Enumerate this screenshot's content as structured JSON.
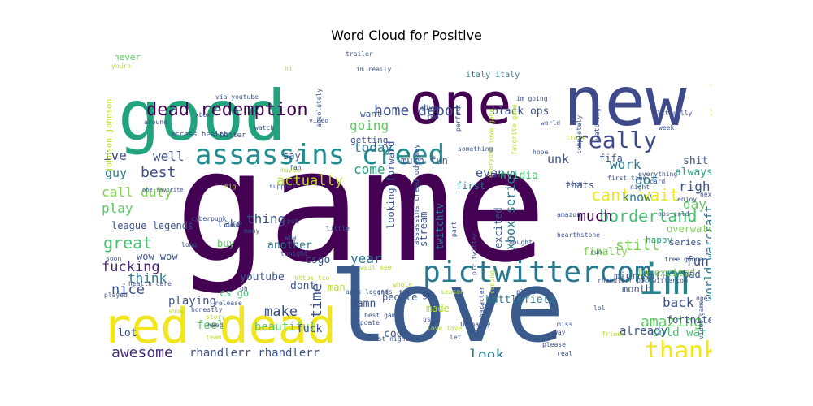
{
  "chart_data": {
    "type": "wordcloud",
    "title": "Word Cloud for Positive",
    "words": [
      {
        "text": "game",
        "weight": 1.0,
        "color": "#440154"
      },
      {
        "text": "love",
        "weight": 0.62,
        "color": "#3b5b8d"
      },
      {
        "text": "good",
        "weight": 0.48,
        "color": "#22a37e"
      },
      {
        "text": "new",
        "weight": 0.45,
        "color": "#3e4a89"
      },
      {
        "text": "one",
        "weight": 0.4,
        "color": "#440154"
      },
      {
        "text": "red dead",
        "weight": 0.33,
        "color": "#f1e51d"
      },
      {
        "text": "im",
        "weight": 0.32,
        "color": "#25848e"
      },
      {
        "text": "pictwittercom",
        "weight": 0.22,
        "color": "#2a788e"
      },
      {
        "text": "assassins creed",
        "weight": 0.21,
        "color": "#228b8d"
      },
      {
        "text": "really",
        "weight": 0.16,
        "color": "#3e4a89"
      },
      {
        "text": "thank",
        "weight": 0.15,
        "color": "#f1e51d"
      },
      {
        "text": "dead redemption",
        "weight": 0.12,
        "color": "#440154"
      },
      {
        "text": "cant wait",
        "weight": 0.1,
        "color": "#f1e51d"
      },
      {
        "text": "borderland",
        "weight": 0.1,
        "color": "#44bf70"
      },
      {
        "text": "great",
        "weight": 0.11,
        "color": "#44bf70"
      },
      {
        "text": "awesome",
        "weight": 0.09,
        "color": "#472c7a"
      },
      {
        "text": "amazing",
        "weight": 0.09,
        "color": "#5ec962"
      },
      {
        "text": "home depot",
        "weight": 0.09,
        "color": "#3b528b"
      },
      {
        "text": "much",
        "weight": 0.09,
        "color": "#440154"
      },
      {
        "text": "best",
        "weight": 0.09,
        "color": "#3e4a89"
      },
      {
        "text": "look",
        "weight": 0.09,
        "color": "#2a788e"
      },
      {
        "text": "fucking",
        "weight": 0.08,
        "color": "#482475"
      },
      {
        "text": "play",
        "weight": 0.08,
        "color": "#5ec962"
      },
      {
        "text": "call duty",
        "weight": 0.08,
        "color": "#7ad151"
      },
      {
        "text": "actually",
        "weight": 0.08,
        "color": "#b5de2b"
      },
      {
        "text": "going",
        "weight": 0.07,
        "color": "#5ec962"
      },
      {
        "text": "today",
        "weight": 0.07,
        "color": "#2a788e"
      },
      {
        "text": "come",
        "weight": 0.07,
        "color": "#22a37e"
      },
      {
        "text": "still",
        "weight": 0.08,
        "color": "#7ad151"
      },
      {
        "text": "back",
        "weight": 0.07,
        "color": "#3b528b"
      },
      {
        "text": "make",
        "weight": 0.07,
        "color": "#3b528b"
      },
      {
        "text": "ive",
        "weight": 0.07,
        "color": "#3e4a89"
      },
      {
        "text": "well",
        "weight": 0.07,
        "color": "#3b528b"
      },
      {
        "text": "nice",
        "weight": 0.07,
        "color": "#3b528b"
      },
      {
        "text": "think",
        "weight": 0.07,
        "color": "#2a788e"
      },
      {
        "text": "got",
        "weight": 0.07,
        "color": "#2a788e"
      },
      {
        "text": "work",
        "weight": 0.07,
        "color": "#2a788e"
      },
      {
        "text": "right",
        "weight": 0.07,
        "color": "#3b528b"
      },
      {
        "text": "day",
        "weight": 0.07,
        "color": "#5ec962"
      },
      {
        "text": "fun",
        "weight": 0.07,
        "color": "#3b528b"
      },
      {
        "text": "year",
        "weight": 0.07,
        "color": "#2a788e"
      },
      {
        "text": "time",
        "weight": 0.07,
        "color": "#3b528b"
      },
      {
        "text": "thing",
        "weight": 0.06,
        "color": "#3b528b"
      },
      {
        "text": "guy",
        "weight": 0.06,
        "color": "#2a788e"
      },
      {
        "text": "know",
        "weight": 0.06,
        "color": "#2a788e"
      },
      {
        "text": "unk",
        "weight": 0.06,
        "color": "#3b528b"
      },
      {
        "text": "xbox series",
        "weight": 0.06,
        "color": "#2a788e"
      },
      {
        "text": "even",
        "weight": 0.06,
        "color": "#3b528b"
      },
      {
        "text": "cold war",
        "weight": 0.05,
        "color": "#44bf70"
      },
      {
        "text": "already",
        "weight": 0.05,
        "color": "#3b528b"
      },
      {
        "text": "world warcraft",
        "weight": 0.05,
        "color": "#2a788e"
      },
      {
        "text": "rhandlerr rhandlerr",
        "weight": 0.05,
        "color": "#3b528b"
      },
      {
        "text": "black ops",
        "weight": 0.05,
        "color": "#3b528b"
      },
      {
        "text": "fifa",
        "weight": 0.05,
        "color": "#3b528b"
      },
      {
        "text": "always",
        "weight": 0.05,
        "color": "#22a37e"
      },
      {
        "text": "shit",
        "weight": 0.05,
        "color": "#3b528b"
      },
      {
        "text": "nvidia",
        "weight": 0.05,
        "color": "#44bf70"
      },
      {
        "text": "first",
        "weight": 0.05,
        "color": "#2a788e"
      },
      {
        "text": "thats",
        "weight": 0.05,
        "color": "#3b528b"
      },
      {
        "text": "overwatch",
        "weight": 0.05,
        "color": "#7ad151"
      },
      {
        "text": "happy",
        "weight": 0.04,
        "color": "#22a37e"
      },
      {
        "text": "finally",
        "weight": 0.05,
        "color": "#7ad151"
      },
      {
        "text": "series",
        "weight": 0.04,
        "color": "#3b528b"
      },
      {
        "text": "im excited",
        "weight": 0.04,
        "color": "#7ad151"
      },
      {
        "text": "microsoft",
        "weight": 0.04,
        "color": "#3b528b"
      },
      {
        "text": "battlefield",
        "weight": 0.05,
        "color": "#2a788e"
      },
      {
        "text": "month",
        "weight": 0.04,
        "color": "#3b528b"
      },
      {
        "text": "fortnite",
        "weight": 0.04,
        "color": "#3b528b"
      },
      {
        "text": "bad",
        "weight": 0.04,
        "color": "#3b528b"
      },
      {
        "text": "people",
        "weight": 0.05,
        "color": "#3b528b"
      },
      {
        "text": "made",
        "weight": 0.04,
        "color": "#b5de2b"
      },
      {
        "text": "go",
        "weight": 0.04,
        "color": "#3b528b"
      },
      {
        "text": "cool",
        "weight": 0.05,
        "color": "#3b528b"
      },
      {
        "text": "damn",
        "weight": 0.05,
        "color": "#3b528b"
      },
      {
        "text": "beautiful",
        "weight": 0.05,
        "color": "#5ec962"
      },
      {
        "text": "feel",
        "weight": 0.05,
        "color": "#5ec962"
      },
      {
        "text": "fuck",
        "weight": 0.04,
        "color": "#3b528b"
      },
      {
        "text": "playing",
        "weight": 0.05,
        "color": "#3b528b"
      },
      {
        "text": "lot",
        "weight": 0.05,
        "color": "#3b528b"
      },
      {
        "text": "youtube",
        "weight": 0.04,
        "color": "#3b528b"
      },
      {
        "text": "cs go",
        "weight": 0.04,
        "color": "#44bf70"
      },
      {
        "text": "csgo",
        "weight": 0.04,
        "color": "#3b528b"
      },
      {
        "text": "dont",
        "weight": 0.04,
        "color": "#3b528b"
      },
      {
        "text": "league legends",
        "weight": 0.04,
        "color": "#3b528b"
      },
      {
        "text": "wow wow",
        "weight": 0.04,
        "color": "#3b528b"
      },
      {
        "text": "take",
        "weight": 0.04,
        "color": "#3b528b"
      },
      {
        "text": "buy",
        "weight": 0.04,
        "color": "#5ec962"
      },
      {
        "text": "another",
        "weight": 0.04,
        "color": "#2a788e"
      },
      {
        "text": "man",
        "weight": 0.04,
        "color": "#b5de2b"
      },
      {
        "text": "excited",
        "weight": 0.04,
        "color": "#3b528b"
      },
      {
        "text": "looking forward",
        "weight": 0.04,
        "color": "#3b528b"
      },
      {
        "text": "stream",
        "weight": 0.04,
        "color": "#3b528b"
      },
      {
        "text": "twitchtv",
        "weight": 0.04,
        "color": "#2a788e"
      },
      {
        "text": "say",
        "weight": 0.04,
        "color": "#3b528b"
      },
      {
        "text": "much fun",
        "weight": 0.04,
        "color": "#3b528b"
      },
      {
        "text": "want",
        "weight": 0.04,
        "color": "#3b528b"
      },
      {
        "text": "getting",
        "weight": 0.04,
        "color": "#3b528b"
      },
      {
        "text": "never",
        "weight": 0.03,
        "color": "#5ec962"
      },
      {
        "text": "johnson johnson",
        "weight": 0.03,
        "color": "#b5de2b"
      },
      {
        "text": "access health",
        "weight": 0.02,
        "color": "#3b528b"
      },
      {
        "text": "better",
        "weight": 0.02,
        "color": "#3b528b"
      },
      {
        "text": "xbox",
        "weight": 0.02,
        "color": "#3b528b"
      },
      {
        "text": "via youtube",
        "weight": 0.02,
        "color": "#3b528b"
      },
      {
        "text": "watch",
        "weight": 0.02,
        "color": "#3b528b"
      },
      {
        "text": "video",
        "weight": 0.02,
        "color": "#3b528b"
      },
      {
        "text": "around",
        "weight": 0.02,
        "color": "#3b528b"
      },
      {
        "text": "give",
        "weight": 0.02,
        "color": "#3b528b"
      },
      {
        "text": "two",
        "weight": 0.02,
        "color": "#3b528b"
      },
      {
        "text": "perfect",
        "weight": 0.02,
        "color": "#3b528b"
      },
      {
        "text": "love game",
        "weight": 0.02,
        "color": "#b5de2b"
      },
      {
        "text": "favorite game",
        "weight": 0.02,
        "color": "#b5de2b"
      },
      {
        "text": "italy italy",
        "weight": 0.03,
        "color": "#2a788e"
      },
      {
        "text": "trailer",
        "weight": 0.02,
        "color": "#3b528b"
      },
      {
        "text": "im really",
        "weight": 0.02,
        "color": "#3b528b"
      },
      {
        "text": "first time",
        "weight": 0.02,
        "color": "#3b528b"
      },
      {
        "text": "night",
        "weight": 0.02,
        "color": "#3b528b"
      },
      {
        "text": "seem",
        "weight": 0.02,
        "color": "#3b528b"
      },
      {
        "text": "crazy",
        "weight": 0.02,
        "color": "#b5de2b"
      },
      {
        "text": "week",
        "weight": 0.02,
        "color": "#3b528b"
      },
      {
        "text": "literally",
        "weight": 0.02,
        "color": "#3b528b"
      },
      {
        "text": "really good",
        "weight": 0.02,
        "color": "#b5de2b"
      },
      {
        "text": "enjoy",
        "weight": 0.02,
        "color": "#3b528b"
      },
      {
        "text": "card",
        "weight": 0.02,
        "color": "#3b528b"
      },
      {
        "text": "next",
        "weight": 0.02,
        "color": "#3b528b"
      },
      {
        "text": "support",
        "weight": 0.02,
        "color": "#3b528b"
      },
      {
        "text": "maybe",
        "weight": 0.02,
        "color": "#b5de2b"
      },
      {
        "text": "one favorite",
        "weight": 0.02,
        "color": "#3b528b"
      },
      {
        "text": "cyberpunk",
        "weight": 0.02,
        "color": "#3b528b"
      },
      {
        "text": "put",
        "weight": 0.02,
        "color": "#3b528b"
      },
      {
        "text": "little",
        "weight": 0.02,
        "color": "#3b528b"
      },
      {
        "text": "amazon",
        "weight": 0.02,
        "color": "#3b528b"
      },
      {
        "text": "hearthstone",
        "weight": 0.02,
        "color": "#3b528b"
      },
      {
        "text": "ops cold",
        "weight": 0.02,
        "color": "#3b528b"
      },
      {
        "text": "everything",
        "weight": 0.02,
        "color": "#3b528b"
      },
      {
        "text": "hope",
        "weight": 0.02,
        "color": "#3b528b"
      },
      {
        "text": "everyone",
        "weight": 0.02,
        "color": "#b5de2b"
      },
      {
        "text": "something",
        "weight": 0.02,
        "color": "#3b528b"
      },
      {
        "text": "cant",
        "weight": 0.02,
        "color": "#3b528b"
      },
      {
        "text": "many",
        "weight": 0.02,
        "color": "#3b528b"
      },
      {
        "text": "wow",
        "weight": 0.02,
        "color": "#3b528b"
      },
      {
        "text": "long",
        "weight": 0.02,
        "color": "#3b528b"
      },
      {
        "text": "health care",
        "weight": 0.02,
        "color": "#3b528b"
      },
      {
        "text": "soon",
        "weight": 0.02,
        "color": "#3b528b"
      },
      {
        "text": "tonight",
        "weight": 0.02,
        "color": "#3b528b"
      },
      {
        "text": "https tco",
        "weight": 0.02,
        "color": "#b5de2b"
      },
      {
        "text": "apex legends",
        "weight": 0.02,
        "color": "#3b528b"
      },
      {
        "text": "ill",
        "weight": 0.02,
        "color": "#3b528b"
      },
      {
        "text": "far",
        "weight": 0.02,
        "color": "#3b528b"
      },
      {
        "text": "played",
        "weight": 0.02,
        "color": "#3b528b"
      },
      {
        "text": "show",
        "weight": 0.02,
        "color": "#b5de2b"
      },
      {
        "text": "release",
        "weight": 0.02,
        "color": "#3b528b"
      },
      {
        "text": "honestly",
        "weight": 0.02,
        "color": "#3b528b"
      },
      {
        "text": "need",
        "weight": 0.02,
        "color": "#3b528b"
      },
      {
        "text": "story",
        "weight": 0.02,
        "color": "#b5de2b"
      },
      {
        "text": "team",
        "weight": 0.02,
        "color": "#b5de2b"
      },
      {
        "text": "best game",
        "weight": 0.02,
        "color": "#3b528b"
      },
      {
        "text": "update",
        "weight": 0.02,
        "color": "#3b528b"
      },
      {
        "text": "last night",
        "weight": 0.02,
        "color": "#3b528b"
      },
      {
        "text": "use",
        "weight": 0.02,
        "color": "#3b528b"
      },
      {
        "text": "love love",
        "weight": 0.02,
        "color": "#b5de2b"
      },
      {
        "text": "let",
        "weight": 0.02,
        "color": "#3b528b"
      },
      {
        "text": "im happy",
        "weight": 0.02,
        "color": "#3b528b"
      },
      {
        "text": "gta",
        "weight": 0.02,
        "color": "#3b528b"
      },
      {
        "text": "player",
        "weight": 0.02,
        "color": "#3b528b"
      },
      {
        "text": "bought",
        "weight": 0.02,
        "color": "#3b528b"
      },
      {
        "text": "run",
        "weight": 0.02,
        "color": "#3b528b"
      },
      {
        "text": "miss",
        "weight": 0.02,
        "color": "#3b528b"
      },
      {
        "text": "way",
        "weight": 0.02,
        "color": "#3b528b"
      },
      {
        "text": "please",
        "weight": 0.02,
        "color": "#3b528b"
      },
      {
        "text": "real",
        "weight": 0.02,
        "color": "#3b528b"
      },
      {
        "text": "lol",
        "weight": 0.02,
        "color": "#3b528b"
      },
      {
        "text": "friend",
        "weight": 0.02,
        "color": "#b5de2b"
      },
      {
        "text": "video game",
        "weight": 0.02,
        "color": "#3b528b"
      },
      {
        "text": "free",
        "weight": 0.02,
        "color": "#3b528b"
      },
      {
        "text": "gonna",
        "weight": 0.02,
        "color": "#3b528b"
      },
      {
        "text": "one best",
        "weight": 0.02,
        "color": "#3b528b"
      },
      {
        "text": "yet",
        "weight": 0.02,
        "color": "#b5de2b"
      },
      {
        "text": "rhandlerr pictwittercom",
        "weight": 0.02,
        "color": "#3b528b"
      },
      {
        "text": "season",
        "weight": 0.02,
        "color": "#b5de2b"
      },
      {
        "text": "character",
        "weight": 0.02,
        "color": "#3b528b"
      },
      {
        "text": "assassins creed odyssey",
        "weight": 0.03,
        "color": "#3b528b"
      },
      {
        "text": "pic twitter",
        "weight": 0.02,
        "color": "#3b528b"
      },
      {
        "text": "part",
        "weight": 0.02,
        "color": "#3b528b"
      },
      {
        "text": "whole",
        "weight": 0.02,
        "color": "#b5de2b"
      },
      {
        "text": "big",
        "weight": 0.02,
        "color": "#b5de2b"
      },
      {
        "text": "fan",
        "weight": 0.02,
        "color": "#3b528b"
      },
      {
        "text": "im going",
        "weight": 0.02,
        "color": "#3b528b"
      },
      {
        "text": "world",
        "weight": 0.02,
        "color": "#3b528b"
      },
      {
        "text": "youre",
        "weight": 0.02,
        "color": "#b5de2b"
      },
      {
        "text": "hi",
        "weight": 0.02,
        "color": "#b5de2b"
      },
      {
        "text": "completely",
        "weight": 0.02,
        "color": "#3b528b"
      },
      {
        "text": "watching",
        "weight": 0.02,
        "color": "#3b528b"
      },
      {
        "text": "absolutely",
        "weight": 0.02,
        "color": "#3b528b"
      },
      {
        "text": "coming",
        "weight": 0.02,
        "color": "#b5de2b"
      },
      {
        "text": "wait see",
        "weight": 0.02,
        "color": "#b5de2b"
      },
      {
        "text": "oh",
        "weight": 0.02,
        "color": "#3b528b"
      }
    ]
  }
}
